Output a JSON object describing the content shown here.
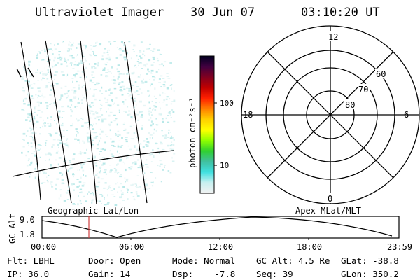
{
  "header": {
    "instrument": "Ultraviolet Imager",
    "date": "30 Jun 07",
    "time": "03:10:20 UT"
  },
  "left_panel": {
    "label": "Geographic Lat/Lon"
  },
  "colorbar": {
    "unit_label": "photon cm⁻²s⁻¹",
    "tick_labels": [
      "100",
      "10"
    ],
    "colors": [
      "#f2f2f2",
      "#c8f0f0",
      "#40e0e0",
      "#40c0a0",
      "#30d030",
      "#90ff00",
      "#ffff00",
      "#ffd000",
      "#ff8000",
      "#ff2000",
      "#c00000",
      "#800020",
      "#400040",
      "#000020"
    ]
  },
  "polar_panel": {
    "label": "Apex MLat/MLT",
    "mlt_labels": {
      "top": "12",
      "left": "18",
      "right": "6",
      "bottom": "0"
    },
    "lat_labels": [
      "60",
      "70",
      "80"
    ]
  },
  "altitude_plot": {
    "ylabel": "GC Alt",
    "y_ticks": [
      "9.0",
      "1.8"
    ],
    "x_ticks": [
      "00:00",
      "06:00",
      "12:00",
      "18:00",
      "23:59"
    ],
    "marker_color": "#d04040"
  },
  "info": {
    "row1": [
      {
        "label": "Flt:",
        "value": "LBHL"
      },
      {
        "label": "Door:",
        "value": "Open"
      },
      {
        "label": "Mode:",
        "value": "Normal"
      },
      {
        "label": "GC Alt:",
        "value": "4.5 Re"
      },
      {
        "label": "GLat:",
        "value": "-38.8"
      }
    ],
    "row2": [
      {
        "label": "IP:",
        "value": "36.0"
      },
      {
        "label": "Gain:",
        "value": "14"
      },
      {
        "label": "Dsp:",
        "value": "-7.8"
      },
      {
        "label": "Seq:",
        "value": "39"
      },
      {
        "label": "GLon:",
        "value": "350.2"
      }
    ]
  }
}
